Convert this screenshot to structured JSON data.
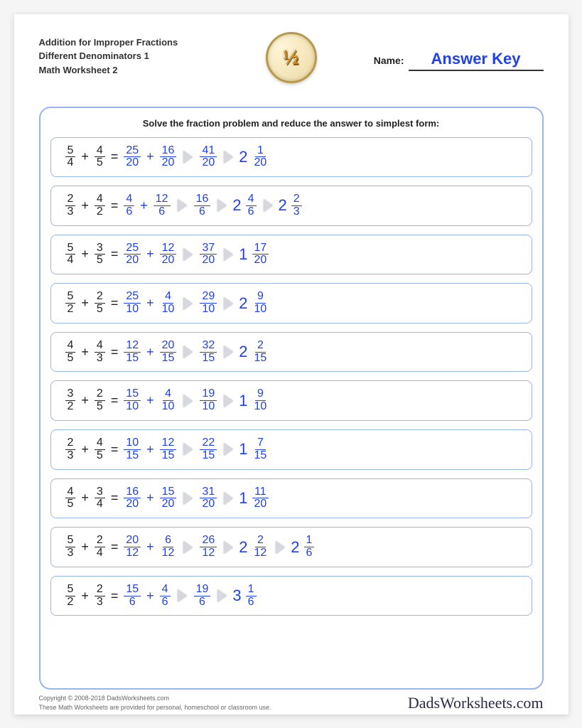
{
  "header": {
    "title_line1": "Addition for Improper Fractions",
    "title_line2": "Different Denominators 1",
    "title_line3": "Math Worksheet 2",
    "badge_text": "½",
    "name_label": "Name:",
    "name_value": "Answer Key"
  },
  "instructions": "Solve the fraction problem and reduce the answer to simplest form:",
  "colors": {
    "border": "#9ab4f0",
    "answer": "#2040f0",
    "text": "#222222",
    "arrow": "#d6d8de",
    "background": "#ffffff"
  },
  "problems": [
    {
      "a": {
        "n": "5",
        "d": "4"
      },
      "b": {
        "n": "4",
        "d": "5"
      },
      "steps": [
        {
          "type": "sum",
          "l": {
            "n": "25",
            "d": "20"
          },
          "r": {
            "n": "16",
            "d": "20"
          }
        },
        {
          "type": "frac",
          "v": {
            "n": "41",
            "d": "20"
          }
        },
        {
          "type": "mixed",
          "w": "2",
          "n": "1",
          "d": "20"
        }
      ]
    },
    {
      "a": {
        "n": "2",
        "d": "3"
      },
      "b": {
        "n": "4",
        "d": "2"
      },
      "steps": [
        {
          "type": "sum",
          "l": {
            "n": "4",
            "d": "6"
          },
          "r": {
            "n": "12",
            "d": "6"
          }
        },
        {
          "type": "frac",
          "v": {
            "n": "16",
            "d": "6"
          }
        },
        {
          "type": "mixed",
          "w": "2",
          "n": "4",
          "d": "6"
        },
        {
          "type": "mixed",
          "w": "2",
          "n": "2",
          "d": "3"
        }
      ]
    },
    {
      "a": {
        "n": "5",
        "d": "4"
      },
      "b": {
        "n": "3",
        "d": "5"
      },
      "steps": [
        {
          "type": "sum",
          "l": {
            "n": "25",
            "d": "20"
          },
          "r": {
            "n": "12",
            "d": "20"
          }
        },
        {
          "type": "frac",
          "v": {
            "n": "37",
            "d": "20"
          }
        },
        {
          "type": "mixed",
          "w": "1",
          "n": "17",
          "d": "20"
        }
      ]
    },
    {
      "a": {
        "n": "5",
        "d": "2"
      },
      "b": {
        "n": "2",
        "d": "5"
      },
      "steps": [
        {
          "type": "sum",
          "l": {
            "n": "25",
            "d": "10"
          },
          "r": {
            "n": "4",
            "d": "10"
          }
        },
        {
          "type": "frac",
          "v": {
            "n": "29",
            "d": "10"
          }
        },
        {
          "type": "mixed",
          "w": "2",
          "n": "9",
          "d": "10"
        }
      ]
    },
    {
      "a": {
        "n": "4",
        "d": "5"
      },
      "b": {
        "n": "4",
        "d": "3"
      },
      "steps": [
        {
          "type": "sum",
          "l": {
            "n": "12",
            "d": "15"
          },
          "r": {
            "n": "20",
            "d": "15"
          }
        },
        {
          "type": "frac",
          "v": {
            "n": "32",
            "d": "15"
          }
        },
        {
          "type": "mixed",
          "w": "2",
          "n": "2",
          "d": "15"
        }
      ]
    },
    {
      "a": {
        "n": "3",
        "d": "2"
      },
      "b": {
        "n": "2",
        "d": "5"
      },
      "steps": [
        {
          "type": "sum",
          "l": {
            "n": "15",
            "d": "10"
          },
          "r": {
            "n": "4",
            "d": "10"
          }
        },
        {
          "type": "frac",
          "v": {
            "n": "19",
            "d": "10"
          }
        },
        {
          "type": "mixed",
          "w": "1",
          "n": "9",
          "d": "10"
        }
      ]
    },
    {
      "a": {
        "n": "2",
        "d": "3"
      },
      "b": {
        "n": "4",
        "d": "5"
      },
      "steps": [
        {
          "type": "sum",
          "l": {
            "n": "10",
            "d": "15"
          },
          "r": {
            "n": "12",
            "d": "15"
          }
        },
        {
          "type": "frac",
          "v": {
            "n": "22",
            "d": "15"
          }
        },
        {
          "type": "mixed",
          "w": "1",
          "n": "7",
          "d": "15"
        }
      ]
    },
    {
      "a": {
        "n": "4",
        "d": "5"
      },
      "b": {
        "n": "3",
        "d": "4"
      },
      "steps": [
        {
          "type": "sum",
          "l": {
            "n": "16",
            "d": "20"
          },
          "r": {
            "n": "15",
            "d": "20"
          }
        },
        {
          "type": "frac",
          "v": {
            "n": "31",
            "d": "20"
          }
        },
        {
          "type": "mixed",
          "w": "1",
          "n": "11",
          "d": "20"
        }
      ]
    },
    {
      "a": {
        "n": "5",
        "d": "3"
      },
      "b": {
        "n": "2",
        "d": "4"
      },
      "steps": [
        {
          "type": "sum",
          "l": {
            "n": "20",
            "d": "12"
          },
          "r": {
            "n": "6",
            "d": "12"
          }
        },
        {
          "type": "frac",
          "v": {
            "n": "26",
            "d": "12"
          }
        },
        {
          "type": "mixed",
          "w": "2",
          "n": "2",
          "d": "12"
        },
        {
          "type": "mixed",
          "w": "2",
          "n": "1",
          "d": "6"
        }
      ]
    },
    {
      "a": {
        "n": "5",
        "d": "2"
      },
      "b": {
        "n": "2",
        "d": "3"
      },
      "steps": [
        {
          "type": "sum",
          "l": {
            "n": "15",
            "d": "6"
          },
          "r": {
            "n": "4",
            "d": "6"
          }
        },
        {
          "type": "frac",
          "v": {
            "n": "19",
            "d": "6"
          }
        },
        {
          "type": "mixed",
          "w": "3",
          "n": "1",
          "d": "6"
        }
      ]
    }
  ],
  "footer": {
    "copyright": "Copyright © 2008-2018 DadsWorksheets.com",
    "notice": "These Math Worksheets are provided for personal, homeschool or classroom use.",
    "brand": "DadsWorksheets.com"
  }
}
